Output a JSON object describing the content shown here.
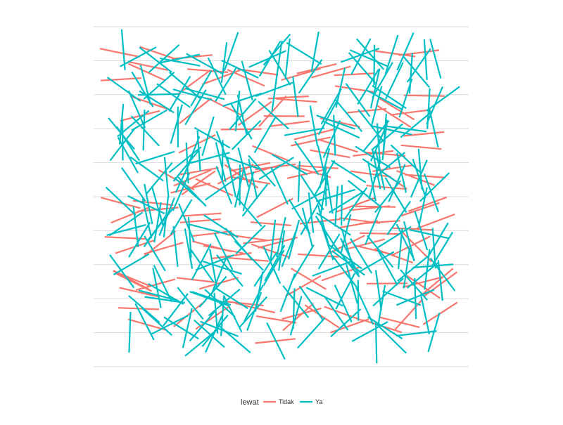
{
  "chart_data": {
    "type": "line",
    "title": "",
    "xlabel": "",
    "ylabel": "",
    "x_tick_labels": [],
    "y_tick_labels": [],
    "grid": "horizontal",
    "gridline_count": 11,
    "legend": {
      "position": "bottom",
      "title": "lewat",
      "entries": [
        {
          "label": "Tidak",
          "color": "#F8766D"
        },
        {
          "label": "Ya",
          "color": "#00BFC4"
        }
      ]
    },
    "colors": {
      "Tidak": "#F8766D",
      "Ya": "#00BFC4",
      "grid": "#d9d9d9",
      "background": "#ffffff"
    },
    "series": [
      {
        "name": "Tidak",
        "segment_count": 170
      },
      {
        "name": "Ya",
        "segment_count": 290
      }
    ]
  }
}
